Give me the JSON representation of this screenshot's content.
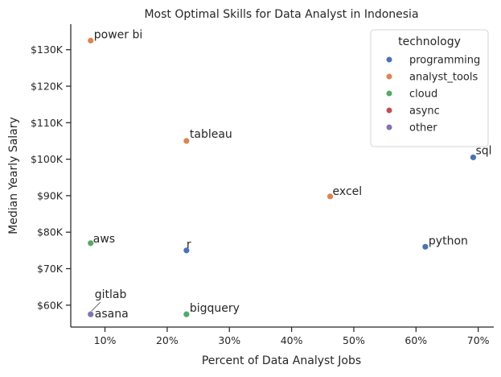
{
  "chart_data": {
    "type": "scatter",
    "title": "Most Optimal Skills for Data Analyst in Indonesia",
    "xlabel": "Percent of Data Analyst Jobs",
    "ylabel": "Median Yearly Salary",
    "xlim": [
      4.5,
      72.5
    ],
    "ylim": [
      54000,
      137000
    ],
    "x_ticks": [
      10,
      20,
      30,
      40,
      50,
      60,
      70
    ],
    "x_tick_labels": [
      "10%",
      "20%",
      "30%",
      "40%",
      "50%",
      "60%",
      "70%"
    ],
    "y_ticks": [
      60000,
      70000,
      80000,
      90000,
      100000,
      110000,
      120000,
      130000
    ],
    "y_tick_labels": [
      "$60K",
      "$70K",
      "$80K",
      "$90K",
      "$100K",
      "$110K",
      "$120K",
      "$130K"
    ],
    "grid": false,
    "legend": {
      "title": "technology",
      "placement": "top-right",
      "entries": [
        {
          "name": "programming",
          "color": "#4c72b0"
        },
        {
          "name": "analyst_tools",
          "color": "#dd8452"
        },
        {
          "name": "cloud",
          "color": "#55a868"
        },
        {
          "name": "async",
          "color": "#c44e52"
        },
        {
          "name": "other",
          "color": "#8172b3"
        }
      ]
    },
    "points": [
      {
        "label": "power bi",
        "x": 7.7,
        "y": 132500,
        "technology": "analyst_tools"
      },
      {
        "label": "tableau",
        "x": 23.1,
        "y": 105000,
        "technology": "analyst_tools"
      },
      {
        "label": "sql",
        "x": 69.2,
        "y": 100500,
        "technology": "programming"
      },
      {
        "label": "excel",
        "x": 46.2,
        "y": 89800,
        "technology": "analyst_tools"
      },
      {
        "label": "aws",
        "x": 7.7,
        "y": 77000,
        "technology": "cloud"
      },
      {
        "label": "python",
        "x": 61.5,
        "y": 76000,
        "technology": "programming"
      },
      {
        "label": "r",
        "x": 23.1,
        "y": 75000,
        "technology": "programming"
      },
      {
        "label": "bigquery",
        "x": 23.1,
        "y": 57500,
        "technology": "cloud"
      },
      {
        "label": "gitlab",
        "x": 7.7,
        "y": 57500,
        "technology": "other"
      },
      {
        "label": "asana",
        "x": 7.7,
        "y": 57500,
        "technology": "other"
      }
    ]
  }
}
